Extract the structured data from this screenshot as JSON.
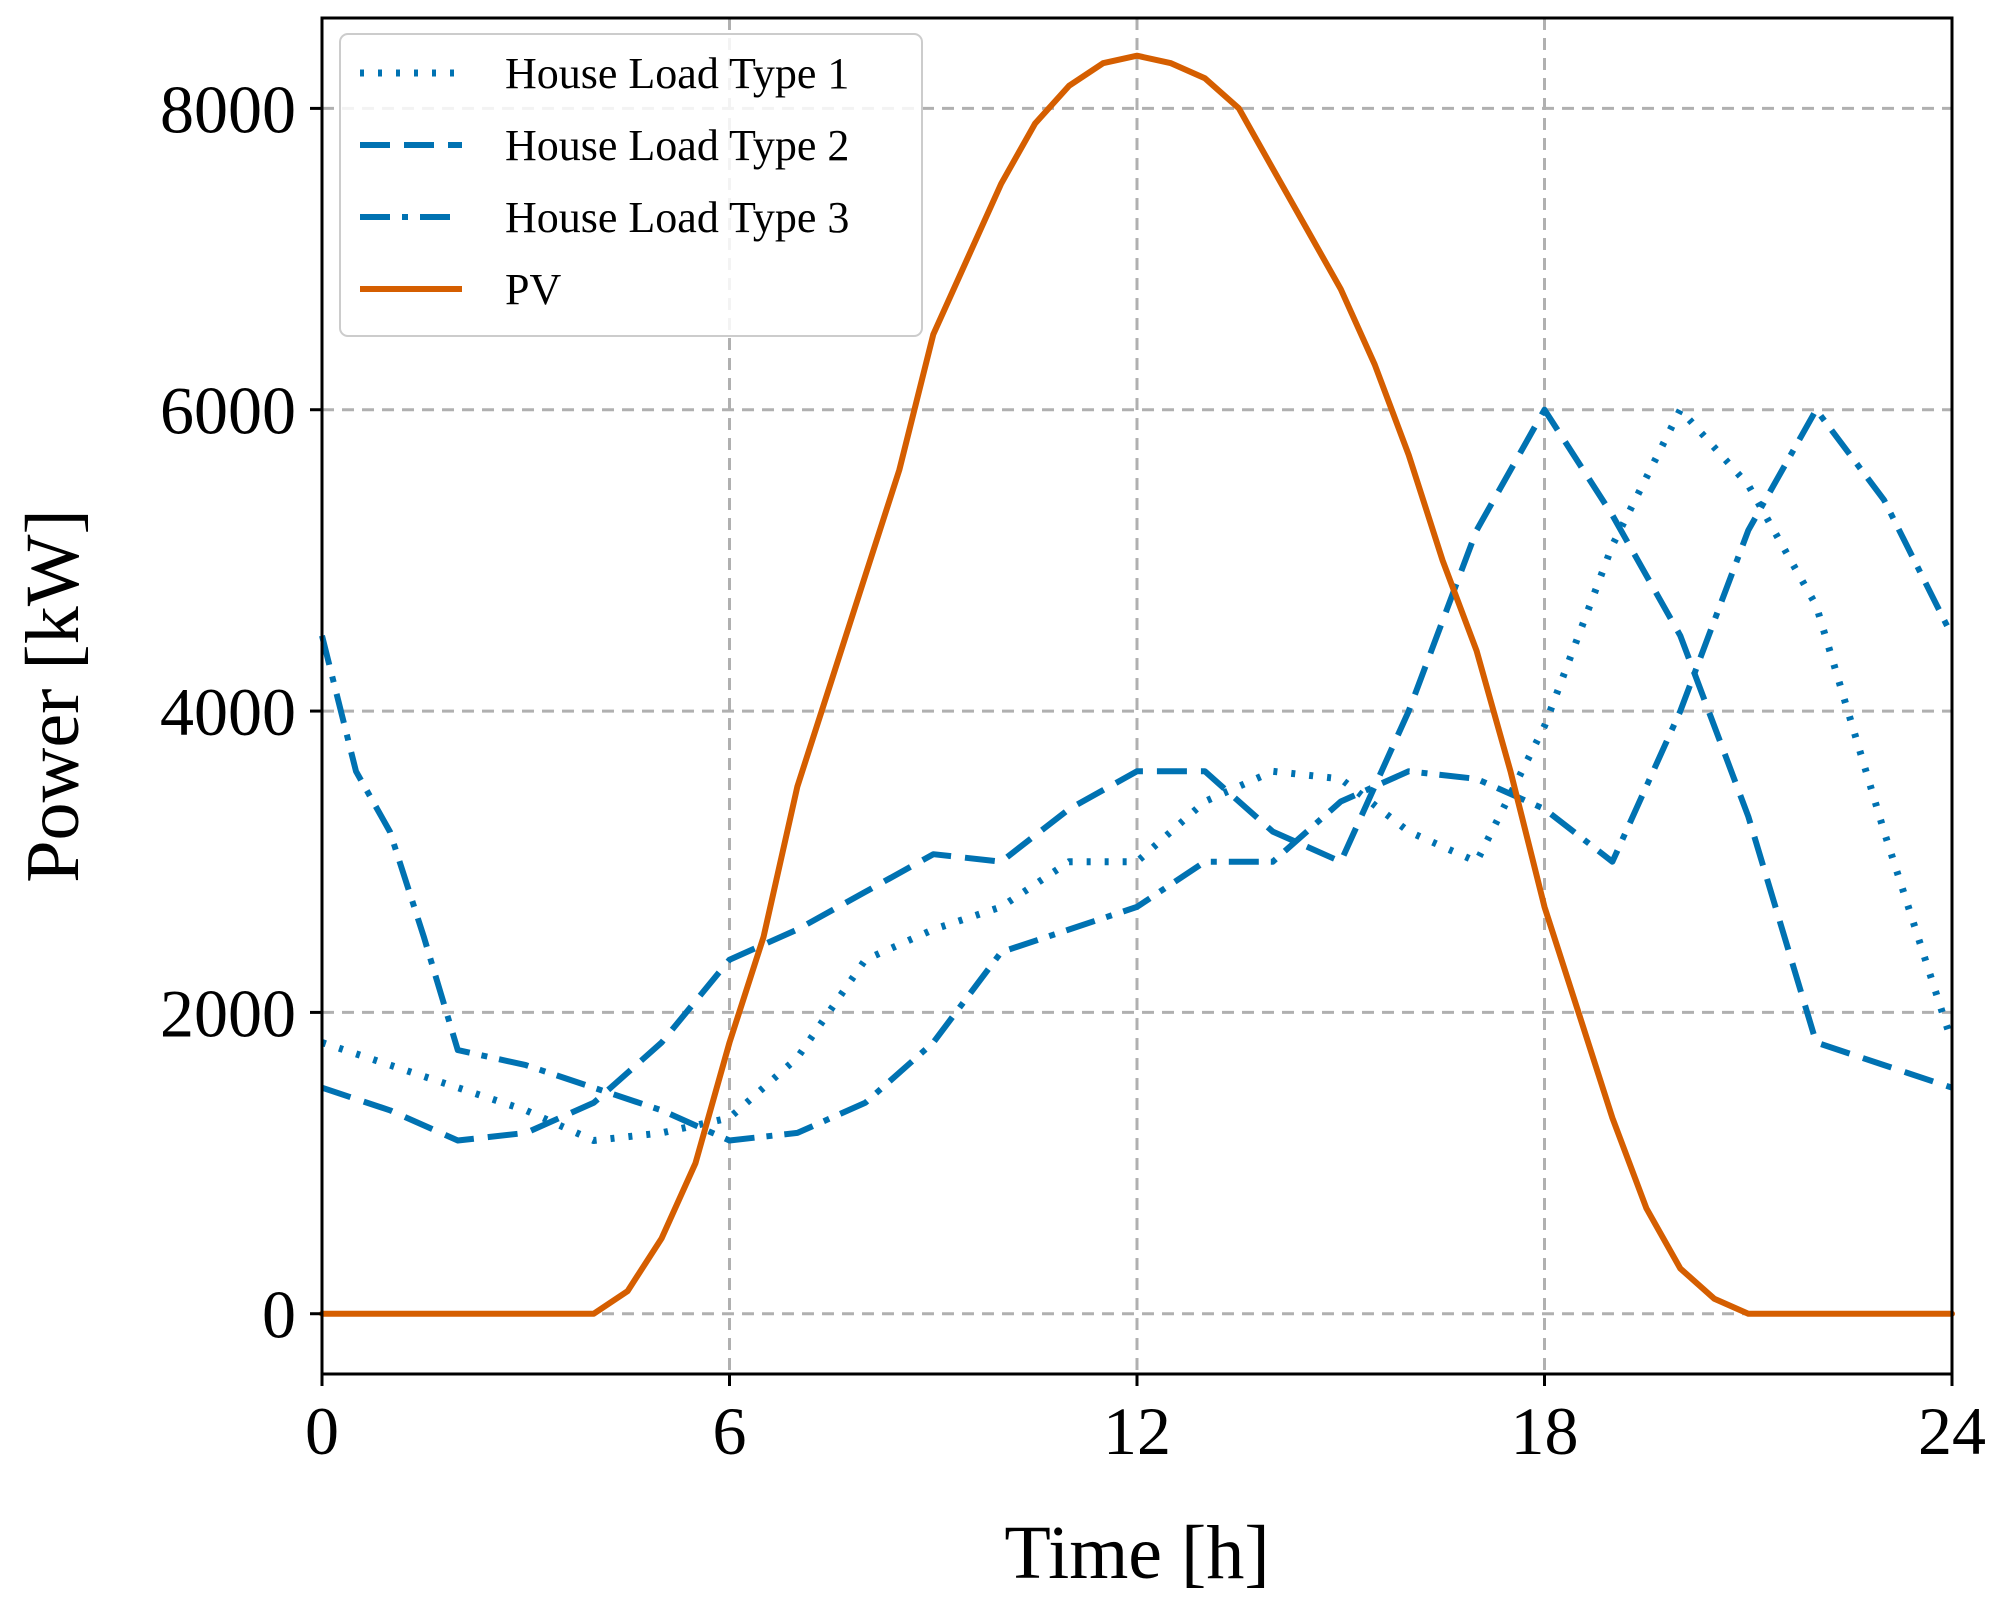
{
  "chart_data": {
    "type": "line",
    "title": "",
    "xlabel": "Time [h]",
    "ylabel": "Power [kW]",
    "xlim": [
      0,
      24
    ],
    "ylim": [
      -400,
      8600
    ],
    "xticks": [
      0,
      6,
      12,
      18,
      24
    ],
    "yticks": [
      0,
      2000,
      4000,
      6000,
      8000
    ],
    "xtick_labels": [
      "0",
      "6",
      "12",
      "18",
      "24"
    ],
    "ytick_labels": [
      "0",
      "2000",
      "4000",
      "6000",
      "8000"
    ],
    "grid": true,
    "legend_position": "top-left",
    "colors": {
      "load": "#0072b2",
      "pv": "#d55e00",
      "grid": "#b0b0b0"
    },
    "series": [
      {
        "name": "House Load Type 1",
        "style": "dotted",
        "x": [
          0,
          1,
          2,
          3,
          4,
          5,
          6,
          7,
          8,
          9,
          10,
          11,
          12,
          13,
          14,
          15,
          16,
          17,
          18,
          19,
          20,
          21,
          22,
          23,
          24
        ],
        "values": [
          1800,
          1650,
          1500,
          1350,
          1150,
          1200,
          1300,
          1700,
          2350,
          2550,
          2700,
          3000,
          3000,
          3400,
          3600,
          3550,
          3200,
          3000,
          3900,
          5100,
          6000,
          5500,
          4700,
          3200,
          1800
        ]
      },
      {
        "name": "House Load Type 2",
        "style": "dashed",
        "x": [
          0,
          1,
          2,
          3,
          4,
          5,
          6,
          7,
          8,
          9,
          10,
          11,
          12,
          13,
          14,
          15,
          16,
          17,
          18,
          19,
          20,
          21,
          22,
          23,
          24
        ],
        "values": [
          1500,
          1350,
          1150,
          1200,
          1400,
          1800,
          2350,
          2550,
          2800,
          3050,
          3000,
          3350,
          3600,
          3600,
          3200,
          3000,
          4000,
          5200,
          6000,
          5300,
          4500,
          3300,
          1800,
          1650,
          1500
        ]
      },
      {
        "name": "House Load Type 3",
        "style": "dashdot",
        "x": [
          0,
          0.5,
          1,
          1.5,
          2,
          3,
          4,
          5,
          6,
          7,
          8,
          9,
          10,
          11,
          12,
          13,
          14,
          15,
          16,
          17,
          18,
          19,
          20,
          21,
          22,
          23,
          24
        ],
        "values": [
          4500,
          3600,
          3200,
          2500,
          1750,
          1650,
          1500,
          1350,
          1150,
          1200,
          1400,
          1800,
          2400,
          2550,
          2700,
          3000,
          3000,
          3400,
          3600,
          3550,
          3350,
          3000,
          4000,
          5200,
          6000,
          5400,
          4500
        ]
      },
      {
        "name": "PV",
        "style": "solid",
        "x": [
          0,
          1,
          2,
          3,
          4,
          4.5,
          5,
          5.5,
          6,
          6.5,
          7,
          7.5,
          8,
          8.5,
          9,
          9.5,
          10,
          10.5,
          11,
          11.5,
          12,
          12.5,
          13,
          13.5,
          14,
          14.5,
          15,
          15.5,
          16,
          16.5,
          17,
          17.5,
          18,
          18.5,
          19,
          19.5,
          20,
          20.5,
          21,
          22,
          23,
          24
        ],
        "values": [
          0,
          0,
          0,
          0,
          0,
          150,
          500,
          1000,
          1800,
          2500,
          3500,
          4200,
          4900,
          5600,
          6500,
          7000,
          7500,
          7900,
          8150,
          8300,
          8350,
          8300,
          8200,
          8000,
          7600,
          7200,
          6800,
          6300,
          5700,
          5000,
          4400,
          3600,
          2700,
          2000,
          1300,
          700,
          300,
          100,
          0,
          0,
          0,
          0
        ]
      }
    ]
  }
}
